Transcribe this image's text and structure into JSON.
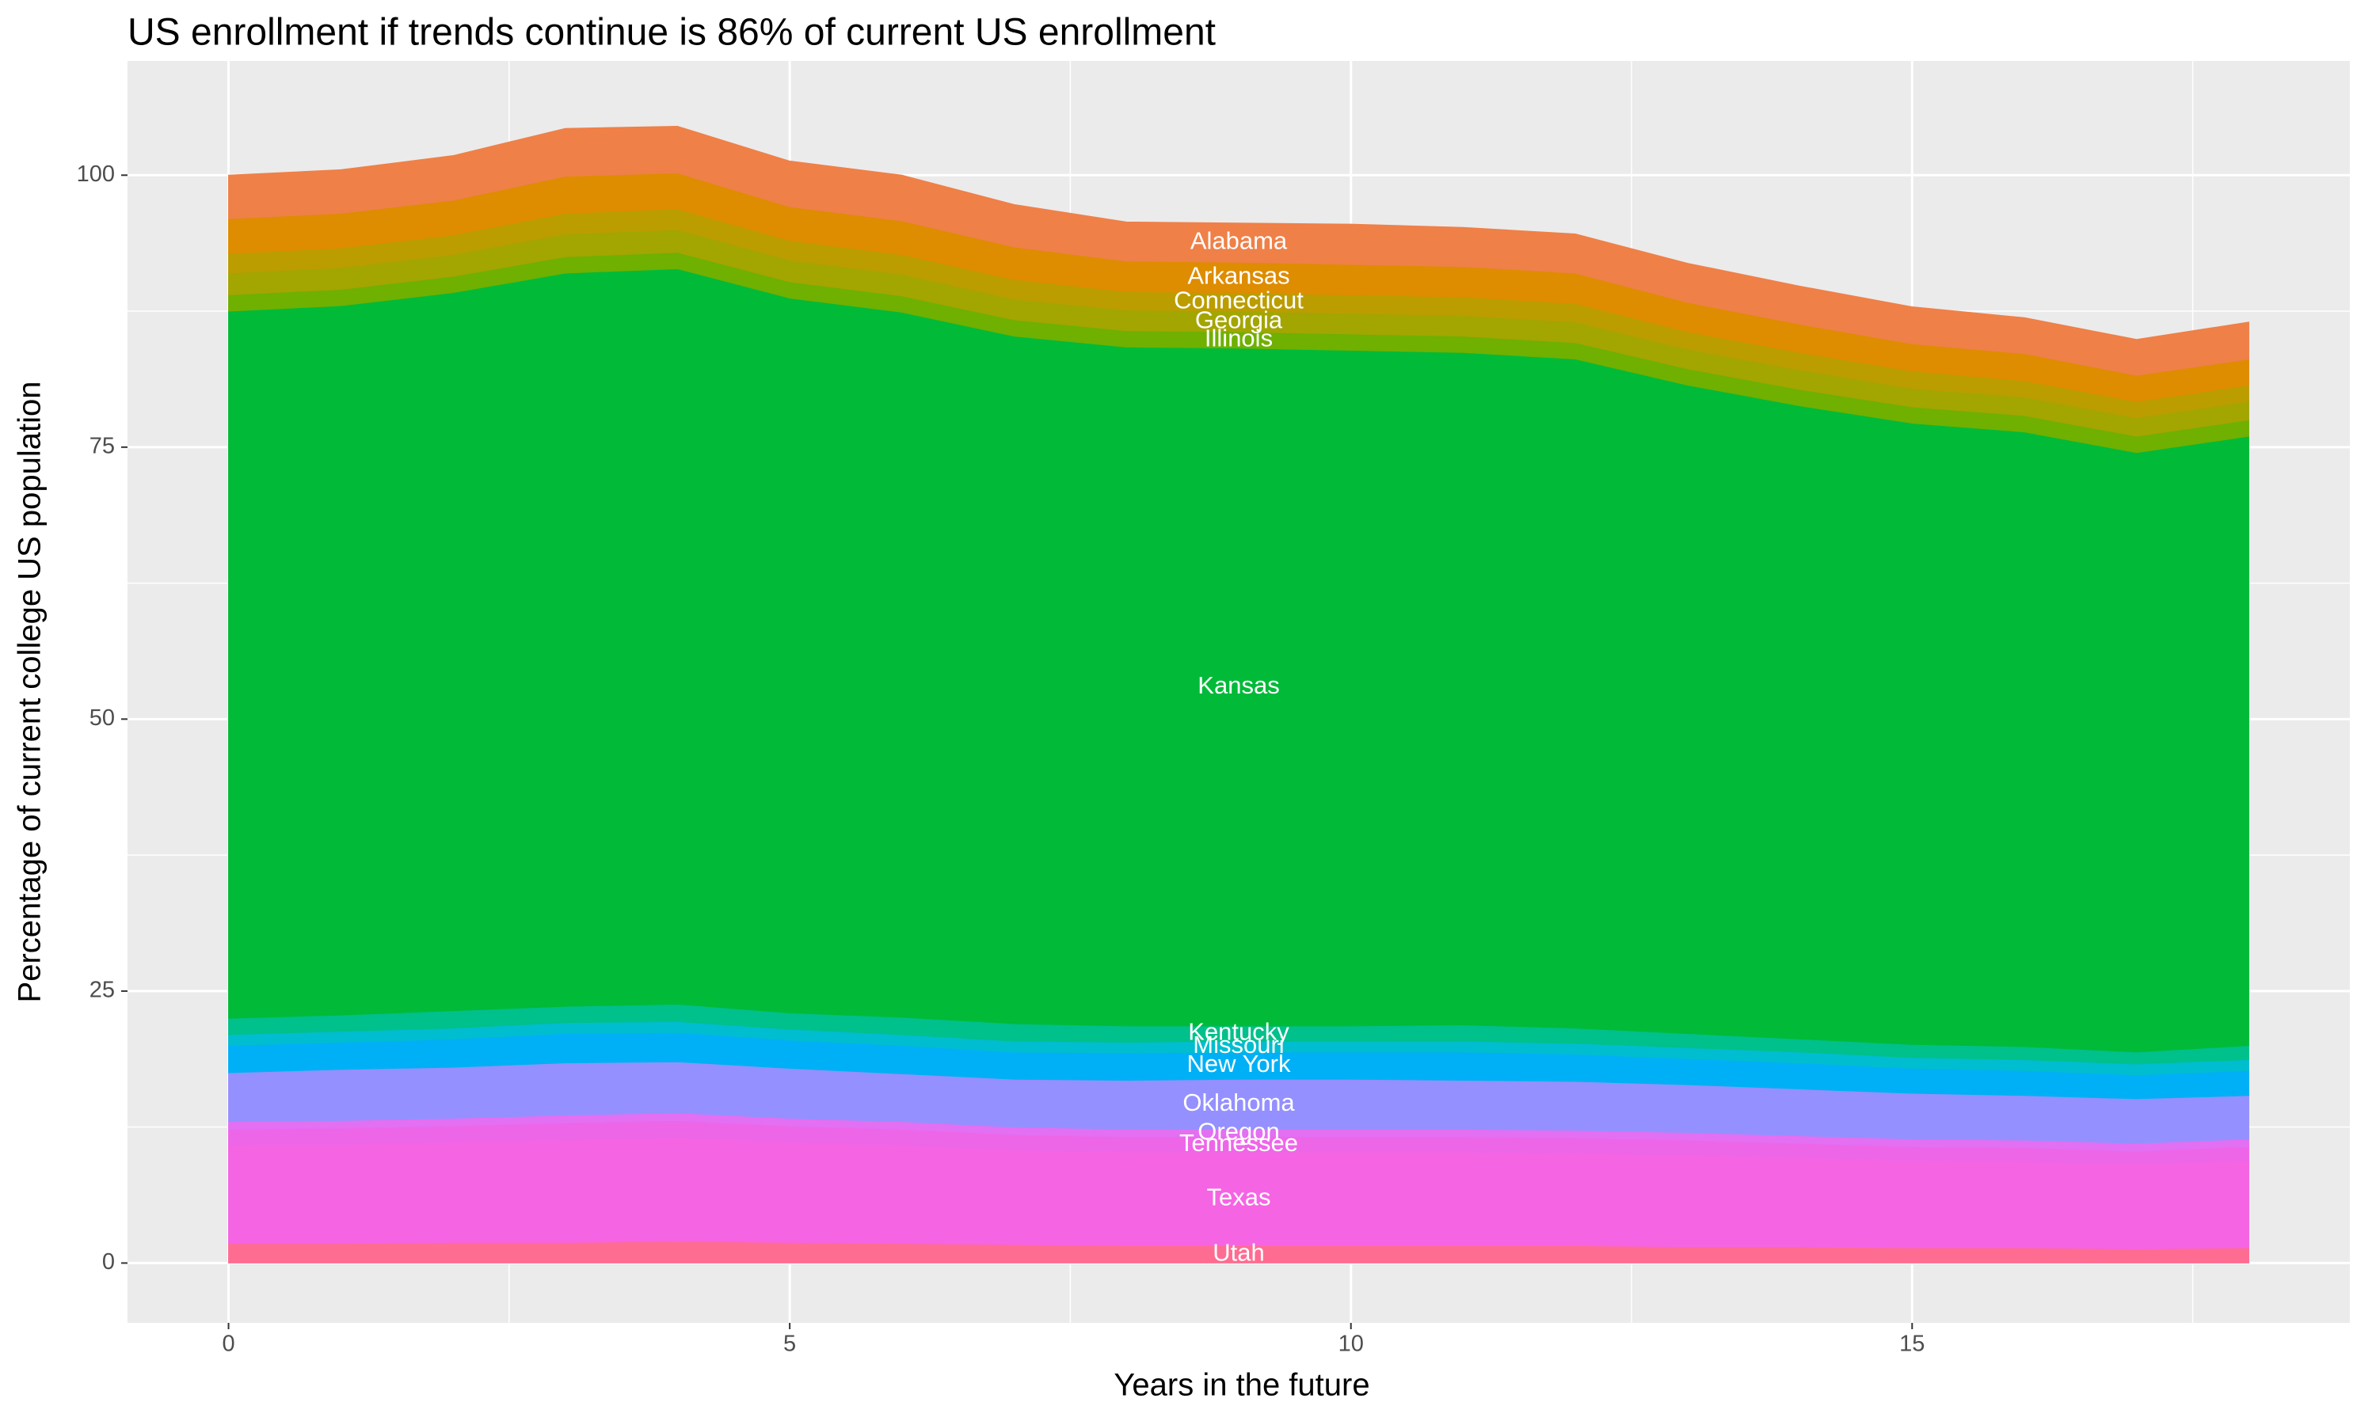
{
  "chart_data": {
    "type": "stacked_area",
    "title": "US enrollment if trends continue is 86% of current US enrollment",
    "x_label": "Years in the future",
    "y_label": "Percentage of current college US population",
    "x": [
      0,
      1,
      2,
      3,
      4,
      5,
      6,
      7,
      8,
      9,
      10,
      11,
      12,
      13,
      14,
      15,
      16,
      17,
      18
    ],
    "xlim": [
      -0.9,
      18.9
    ],
    "xticks": [
      0,
      5,
      10,
      15
    ],
    "x_minor_ticks": [
      2.5,
      7.5,
      12.5,
      17.5
    ],
    "ylim": [
      -5.5,
      110.5
    ],
    "yticks": [
      0,
      25,
      50,
      75,
      100
    ],
    "y_minor_ticks": [
      12.5,
      37.5,
      62.5,
      87.5
    ],
    "grid": true,
    "label_x": 9,
    "series": [
      {
        "name": "Utah",
        "color": "#ff6c91",
        "values": [
          1.8,
          1.8,
          1.9,
          1.9,
          2,
          1.9,
          1.8,
          1.7,
          1.6,
          1.6,
          1.6,
          1.6,
          1.6,
          1.5,
          1.5,
          1.4,
          1.4,
          1.3,
          1.4
        ]
      },
      {
        "name": "Texas",
        "color": "#f564e3",
        "values": [
          9,
          9.1,
          9.2,
          9.4,
          9.5,
          9.2,
          9,
          8.7,
          8.6,
          8.6,
          8.6,
          8.6,
          8.5,
          8.4,
          8.2,
          8,
          7.9,
          7.8,
          8
        ]
      },
      {
        "name": "Tennessee",
        "color": "#ee66e8",
        "values": [
          1.5,
          1.5,
          1.5,
          1.6,
          1.6,
          1.5,
          1.5,
          1.4,
          1.4,
          1.4,
          1.4,
          1.4,
          1.4,
          1.4,
          1.3,
          1.3,
          1.3,
          1.2,
          1.3
        ]
      },
      {
        "name": "Oregon",
        "color": "#e36ff2",
        "values": [
          0.7,
          0.7,
          0.7,
          0.7,
          0.7,
          0.7,
          0.7,
          0.7,
          0.7,
          0.7,
          0.7,
          0.7,
          0.7,
          0.7,
          0.7,
          0.7,
          0.7,
          0.7,
          0.7
        ]
      },
      {
        "name": "Oklahoma",
        "color": "#9590ff",
        "values": [
          4.5,
          4.7,
          4.7,
          4.8,
          4.7,
          4.6,
          4.4,
          4.4,
          4.5,
          4.6,
          4.6,
          4.5,
          4.5,
          4.4,
          4.3,
          4.2,
          4.1,
          4.1,
          4
        ]
      },
      {
        "name": "New York",
        "color": "#00b0f6",
        "values": [
          2.5,
          2.5,
          2.6,
          2.7,
          2.7,
          2.6,
          2.6,
          2.5,
          2.5,
          2.5,
          2.5,
          2.6,
          2.5,
          2.4,
          2.4,
          2.3,
          2.3,
          2.2,
          2.3
        ]
      },
      {
        "name": "Missouri",
        "color": "#00bdd0",
        "values": [
          1,
          1,
          1,
          1,
          1,
          1,
          1,
          1,
          1,
          1,
          1,
          1,
          1,
          1,
          1,
          1,
          1,
          1,
          1
        ]
      },
      {
        "name": "Kentucky",
        "color": "#00c08b",
        "values": [
          1.5,
          1.5,
          1.6,
          1.5,
          1.6,
          1.5,
          1.6,
          1.6,
          1.5,
          1.4,
          1.4,
          1.5,
          1.4,
          1.3,
          1.2,
          1.2,
          1.2,
          1.1,
          1.3
        ]
      },
      {
        "name": "Kansas",
        "color": "#00ba38",
        "values": [
          65,
          65.2,
          66,
          67.4,
          67.6,
          65.7,
          64.8,
          63.2,
          62.4,
          62.3,
          62.1,
          61.8,
          61.5,
          59.6,
          58.2,
          57.1,
          56.5,
          55.1,
          56
        ]
      },
      {
        "name": "Illinois",
        "color": "#6fb000",
        "values": [
          1.5,
          1.5,
          1.5,
          1.5,
          1.5,
          1.5,
          1.5,
          1.5,
          1.5,
          1.5,
          1.5,
          1.5,
          1.5,
          1.5,
          1.5,
          1.5,
          1.5,
          1.5,
          1.5
        ]
      },
      {
        "name": "Georgia",
        "color": "#a3a500",
        "values": [
          2,
          2,
          2,
          2.1,
          2.1,
          2,
          2,
          1.9,
          1.9,
          1.9,
          1.9,
          1.9,
          1.9,
          1.8,
          1.8,
          1.7,
          1.7,
          1.7,
          1.7
        ]
      },
      {
        "name": "Connecticut",
        "color": "#bb9d00",
        "values": [
          1.8,
          1.8,
          1.8,
          1.9,
          1.9,
          1.8,
          1.8,
          1.8,
          1.7,
          1.7,
          1.7,
          1.7,
          1.7,
          1.6,
          1.6,
          1.6,
          1.5,
          1.5,
          1.5
        ]
      },
      {
        "name": "Arkansas",
        "color": "#de8c00",
        "values": [
          3.2,
          3.2,
          3.2,
          3.4,
          3.3,
          3.1,
          3.1,
          3,
          2.8,
          2.8,
          2.8,
          2.8,
          2.8,
          2.7,
          2.6,
          2.5,
          2.5,
          2.4,
          2.4
        ]
      },
      {
        "name": "Alabama",
        "color": "#ef8048",
        "values": [
          4,
          4,
          4.1,
          4.4,
          4.3,
          4.2,
          4.2,
          3.9,
          3.6,
          3.6,
          3.7,
          3.6,
          3.6,
          3.6,
          3.5,
          3.4,
          3.3,
          3.3,
          3.4
        ]
      }
    ]
  }
}
